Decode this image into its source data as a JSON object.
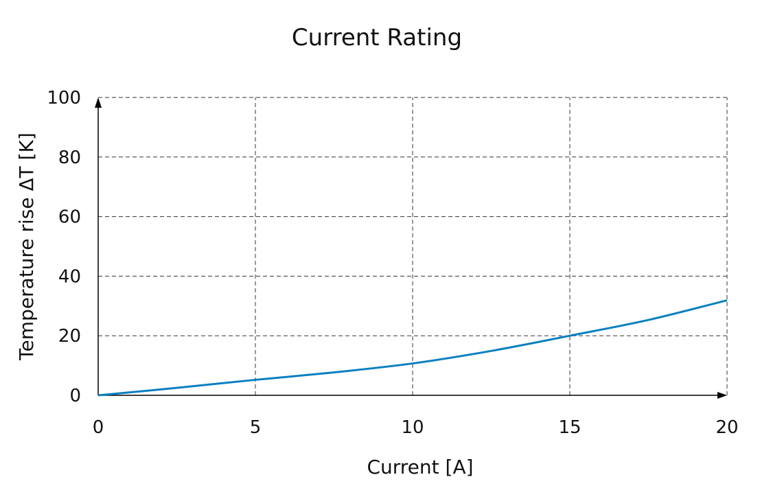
{
  "chart_data": {
    "type": "line",
    "title": "Current Rating",
    "xlabel": "Current [A]",
    "ylabel": "Temperature rise ΔT [K]",
    "xlim": [
      0,
      20
    ],
    "ylim": [
      0,
      100
    ],
    "xticks": [
      "0",
      "5",
      "10",
      "15",
      "20"
    ],
    "yticks": [
      "0",
      "20",
      "40",
      "60",
      "80",
      "100"
    ],
    "grid": true,
    "series": [
      {
        "color": "#0a7fc0",
        "x": [
          0,
          2.5,
          5,
          7.5,
          10,
          12.5,
          15,
          17.5,
          20
        ],
        "y": [
          0,
          2.5,
          5.2,
          7.7,
          10.7,
          14.9,
          20,
          25.3,
          31.9
        ]
      }
    ]
  }
}
